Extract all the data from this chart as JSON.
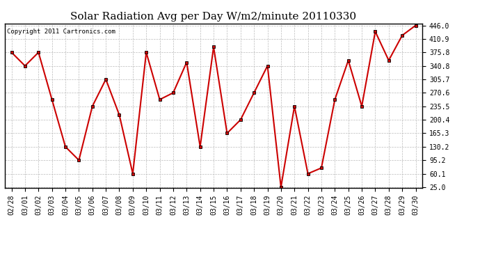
{
  "title": "Solar Radiation Avg per Day W/m2/minute 20110330",
  "copyright": "Copyright 2011 Cartronics.com",
  "dates": [
    "02/28",
    "03/01",
    "03/02",
    "03/03",
    "03/04",
    "03/05",
    "03/06",
    "03/07",
    "03/08",
    "03/09",
    "03/10",
    "03/11",
    "03/12",
    "03/13",
    "03/14",
    "03/15",
    "03/16",
    "03/17",
    "03/18",
    "03/19",
    "03/20",
    "03/21",
    "03/22",
    "03/23",
    "03/24",
    "03/25",
    "03/26",
    "03/27",
    "03/28",
    "03/29",
    "03/30"
  ],
  "values": [
    375.8,
    340.8,
    375.8,
    253.0,
    130.2,
    95.2,
    235.5,
    305.7,
    213.0,
    60.1,
    375.8,
    253.0,
    270.6,
    350.0,
    130.2,
    390.0,
    165.3,
    200.4,
    270.6,
    340.8,
    25.0,
    235.5,
    60.1,
    75.0,
    253.0,
    355.0,
    235.5,
    430.0,
    355.0,
    420.0,
    446.0
  ],
  "line_color": "#cc0000",
  "marker": "s",
  "marker_size": 2.5,
  "marker_edge_color": "#000000",
  "bg_color": "#ffffff",
  "grid_color": "#bbbbbb",
  "ymin": 25.0,
  "ymax": 446.0,
  "yticks": [
    25.0,
    60.1,
    95.2,
    130.2,
    165.3,
    200.4,
    235.5,
    270.6,
    305.7,
    340.8,
    375.8,
    410.9,
    446.0
  ],
  "title_fontsize": 11,
  "copyright_fontsize": 6.5,
  "tick_fontsize": 7,
  "linewidth": 1.5
}
